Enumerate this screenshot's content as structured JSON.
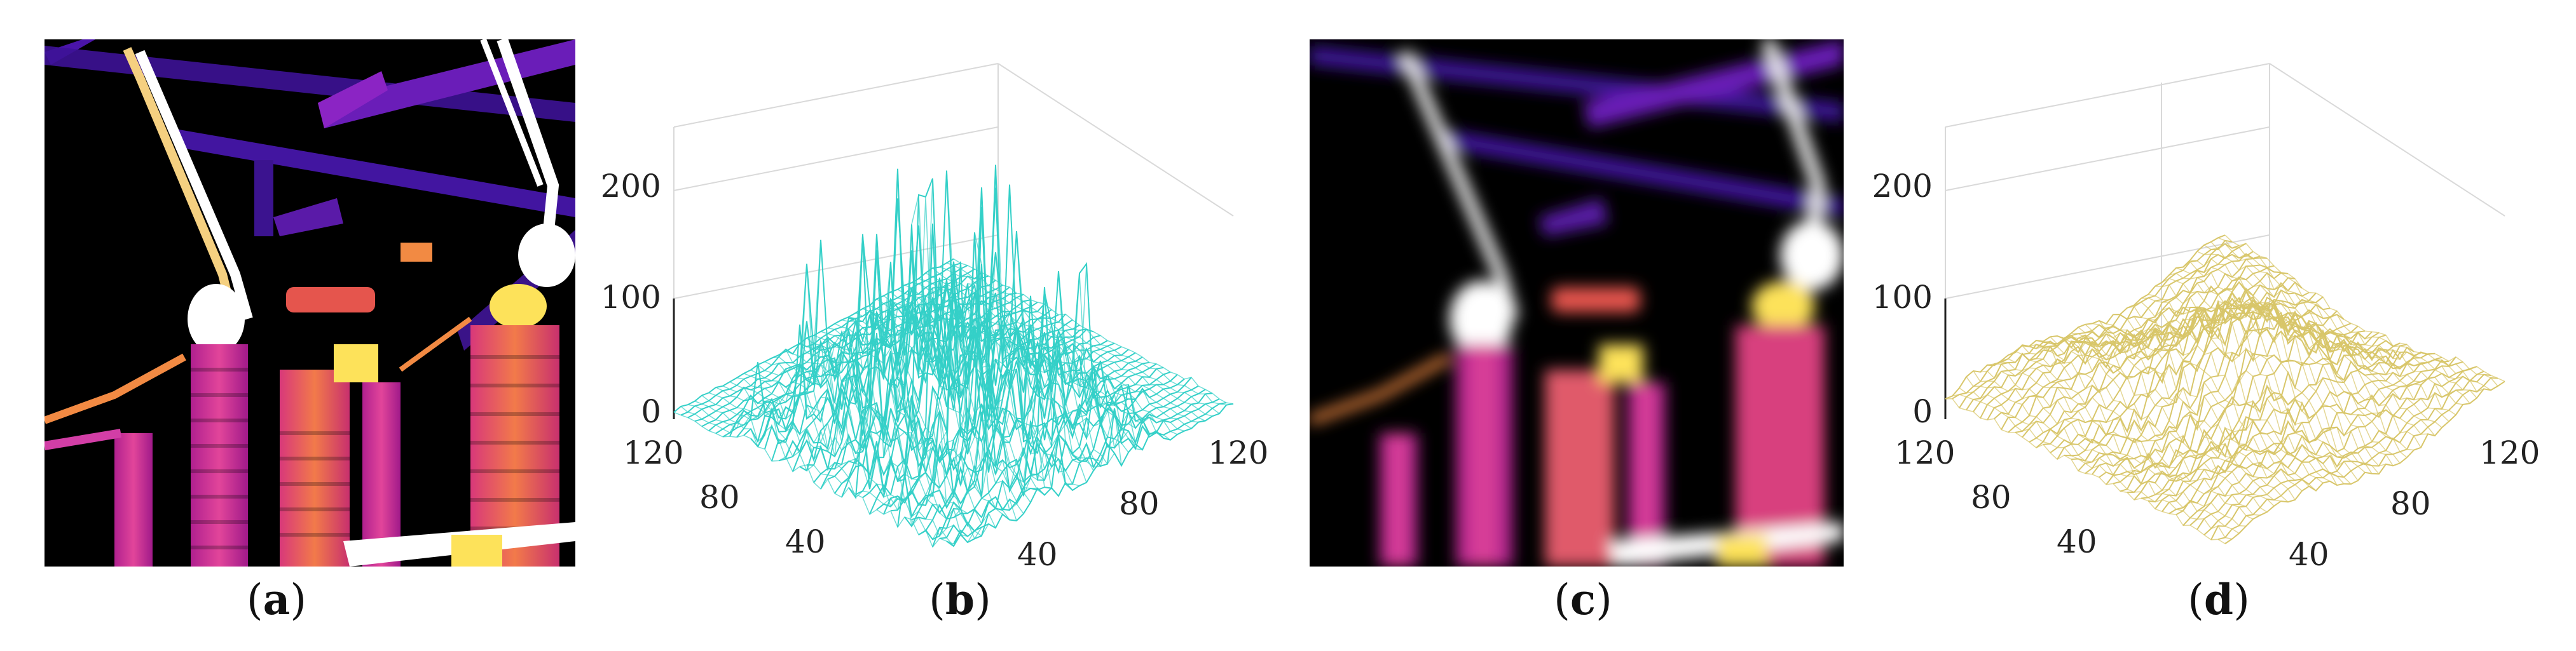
{
  "figure": {
    "panels": [
      {
        "id": "a",
        "caption_open": "(",
        "caption_letter": "a",
        "caption_close": ")",
        "kind": "infrared-image",
        "subject": "substation insulators and busbars",
        "palette": [
          "#000000",
          "#3a0b8c",
          "#8b1fc0",
          "#d23ea6",
          "#f27a3a",
          "#fde25a",
          "#ffffff"
        ]
      },
      {
        "id": "b",
        "caption_open": "(",
        "caption_letter": "b",
        "caption_close": ")",
        "kind": "3d-surface-plot",
        "color": "#34d0c8"
      },
      {
        "id": "c",
        "caption_open": "(",
        "caption_letter": "c",
        "caption_close": ")",
        "kind": "infrared-image-blurred",
        "subject": "substation insulators and busbars"
      },
      {
        "id": "d",
        "caption_open": "(",
        "caption_letter": "d",
        "caption_close": ")",
        "kind": "3d-surface-plot",
        "color": "#d8c66a"
      }
    ]
  },
  "chart_data": [
    {
      "type": "surface",
      "panel": "b",
      "z_ticks": [
        "0",
        "100",
        "200"
      ],
      "x_ticks": [
        "40",
        "80",
        "120"
      ],
      "y_ticks": [
        "40",
        "80",
        "120"
      ],
      "zlim": [
        0,
        255
      ],
      "xlim": [
        0,
        128
      ],
      "ylim": [
        0,
        128
      ],
      "grid": true,
      "description_values": {
        "peak_max": 250,
        "baseline": 0
      }
    },
    {
      "type": "surface",
      "panel": "d",
      "z_ticks": [
        "0",
        "100",
        "200"
      ],
      "x_ticks": [
        "40",
        "80",
        "120"
      ],
      "y_ticks": [
        "40",
        "80",
        "120"
      ],
      "zlim": [
        0,
        255
      ],
      "xlim": [
        0,
        128
      ],
      "ylim": [
        0,
        128
      ],
      "grid": true,
      "description_values": {
        "peak_max": 115,
        "baseline": 0
      }
    }
  ]
}
